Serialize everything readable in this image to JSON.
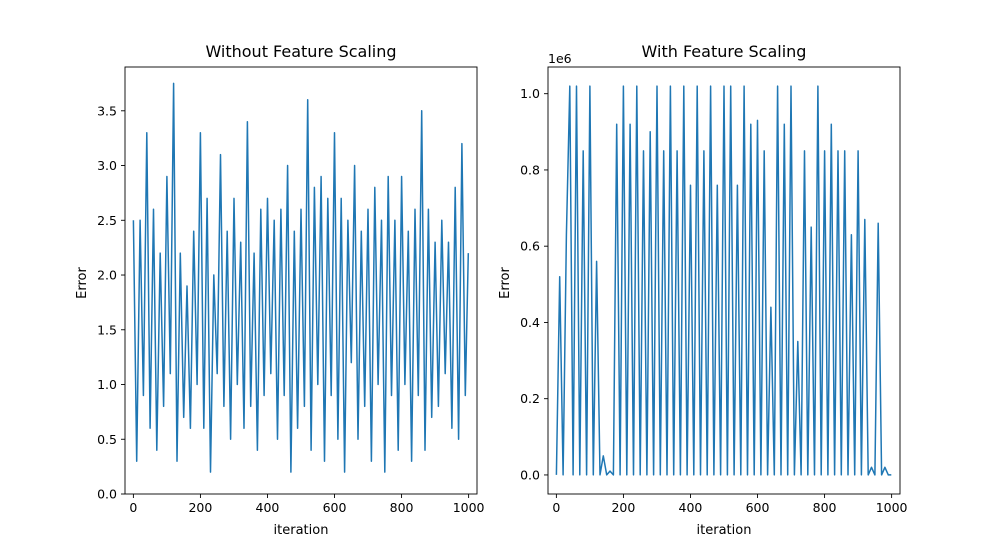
{
  "chart_data": [
    {
      "type": "line",
      "title": "Without Feature Scaling",
      "xlabel": "iteration",
      "ylabel": "Error",
      "xlim": [
        -25,
        1025
      ],
      "ylim": [
        -0.0,
        3.9
      ],
      "xticks": [
        0,
        200,
        400,
        600,
        800,
        1000
      ],
      "xtick_labels": [
        "0",
        "200",
        "400",
        "600",
        "800",
        "1000"
      ],
      "yticks": [
        0.0,
        0.5,
        1.0,
        1.5,
        2.0,
        2.5,
        3.0,
        3.5
      ],
      "ytick_labels": [
        "0.0",
        "0.5",
        "1.0",
        "1.5",
        "2.0",
        "2.5",
        "3.0",
        "3.5"
      ],
      "grid": false,
      "line_color": "#1f77b4",
      "series": [
        {
          "x": [
            0,
            10,
            20,
            30,
            40,
            50,
            60,
            70,
            80,
            90,
            100,
            110,
            120,
            130,
            140,
            150,
            160,
            170,
            180,
            190,
            200,
            210,
            220,
            230,
            240,
            250,
            260,
            270,
            280,
            290,
            300,
            310,
            320,
            330,
            340,
            350,
            360,
            370,
            380,
            390,
            400,
            410,
            420,
            430,
            440,
            450,
            460,
            470,
            480,
            490,
            500,
            510,
            520,
            530,
            540,
            550,
            560,
            570,
            580,
            590,
            600,
            610,
            620,
            630,
            640,
            650,
            660,
            670,
            680,
            690,
            700,
            710,
            720,
            730,
            740,
            750,
            760,
            770,
            780,
            790,
            800,
            810,
            820,
            830,
            840,
            850,
            860,
            870,
            880,
            890,
            900,
            910,
            920,
            930,
            940,
            950,
            960,
            970,
            980,
            990,
            999
          ],
          "y": [
            2.5,
            0.3,
            2.5,
            0.9,
            3.3,
            0.6,
            2.6,
            0.4,
            2.2,
            0.8,
            2.9,
            1.1,
            3.75,
            0.3,
            2.2,
            0.7,
            1.9,
            0.6,
            2.4,
            1.0,
            3.3,
            0.6,
            2.7,
            0.2,
            2.0,
            1.1,
            3.1,
            0.8,
            2.4,
            0.5,
            2.7,
            1.0,
            2.3,
            0.6,
            3.4,
            0.8,
            2.2,
            0.4,
            2.6,
            0.9,
            2.7,
            1.1,
            2.5,
            0.5,
            2.6,
            0.9,
            3.0,
            0.2,
            2.4,
            0.6,
            2.6,
            0.8,
            3.6,
            0.4,
            2.8,
            1.0,
            2.9,
            0.3,
            2.7,
            0.9,
            3.3,
            0.5,
            2.7,
            0.2,
            2.5,
            1.2,
            3.0,
            0.5,
            2.4,
            0.8,
            2.6,
            0.3,
            2.8,
            1.0,
            2.5,
            0.2,
            2.9,
            0.9,
            2.5,
            0.4,
            2.9,
            1.0,
            2.4,
            0.3,
            2.6,
            0.9,
            3.5,
            0.4,
            2.6,
            0.7,
            2.3,
            0.8,
            2.5,
            1.1,
            2.3,
            0.6,
            2.8,
            0.5,
            3.2,
            0.9,
            2.2
          ]
        }
      ]
    },
    {
      "type": "line",
      "title": "With Feature Scaling",
      "xlabel": "iteration",
      "ylabel": "Error",
      "offset_label": "1e6",
      "xlim": [
        -25,
        1025
      ],
      "ylim": [
        -0.05,
        1.07
      ],
      "xticks": [
        0,
        200,
        400,
        600,
        800,
        1000
      ],
      "xtick_labels": [
        "0",
        "200",
        "400",
        "600",
        "800",
        "1000"
      ],
      "yticks": [
        0.0,
        0.2,
        0.4,
        0.6,
        0.8,
        1.0
      ],
      "ytick_labels": [
        "0.0",
        "0.2",
        "0.4",
        "0.6",
        "0.8",
        "1.0"
      ],
      "grid": false,
      "line_color": "#1f77b4",
      "series": [
        {
          "x": [
            0,
            10,
            20,
            30,
            40,
            50,
            60,
            70,
            80,
            90,
            100,
            110,
            120,
            130,
            140,
            150,
            160,
            170,
            180,
            190,
            200,
            210,
            220,
            230,
            240,
            250,
            260,
            270,
            280,
            290,
            300,
            310,
            320,
            330,
            340,
            350,
            360,
            370,
            380,
            390,
            400,
            410,
            420,
            430,
            440,
            450,
            460,
            470,
            480,
            490,
            500,
            510,
            520,
            530,
            540,
            550,
            560,
            570,
            580,
            590,
            600,
            610,
            620,
            630,
            640,
            650,
            660,
            670,
            680,
            690,
            700,
            710,
            720,
            730,
            740,
            750,
            760,
            770,
            780,
            790,
            800,
            810,
            820,
            830,
            840,
            850,
            860,
            870,
            880,
            890,
            900,
            910,
            920,
            930,
            940,
            950,
            960,
            970,
            980,
            990,
            999
          ],
          "y": [
            0.0,
            0.52,
            0.0,
            0.63,
            1.02,
            0.0,
            1.02,
            0.0,
            0.85,
            0.0,
            1.02,
            0.0,
            0.56,
            0.0,
            0.05,
            0.0,
            0.01,
            0.0,
            0.92,
            0.0,
            1.02,
            0.0,
            0.92,
            0.0,
            1.02,
            0.0,
            0.85,
            0.0,
            0.9,
            0.0,
            1.02,
            0.0,
            0.85,
            0.0,
            1.02,
            0.0,
            0.85,
            0.0,
            1.02,
            0.0,
            0.76,
            0.0,
            1.02,
            0.0,
            0.85,
            0.0,
            1.02,
            0.0,
            0.76,
            0.0,
            1.02,
            0.0,
            1.02,
            0.0,
            0.76,
            0.0,
            1.02,
            0.0,
            0.92,
            0.0,
            0.93,
            0.0,
            0.85,
            0.0,
            0.44,
            0.0,
            1.02,
            0.0,
            0.92,
            0.0,
            1.02,
            0.0,
            0.35,
            0.0,
            0.85,
            0.0,
            0.65,
            0.0,
            1.02,
            0.0,
            0.85,
            0.0,
            0.92,
            0.0,
            0.85,
            0.0,
            0.85,
            0.0,
            0.63,
            0.0,
            0.85,
            0.0,
            0.67,
            0.0,
            0.02,
            0.0,
            0.66,
            0.0,
            0.02,
            0.0,
            0.0
          ]
        }
      ]
    }
  ]
}
